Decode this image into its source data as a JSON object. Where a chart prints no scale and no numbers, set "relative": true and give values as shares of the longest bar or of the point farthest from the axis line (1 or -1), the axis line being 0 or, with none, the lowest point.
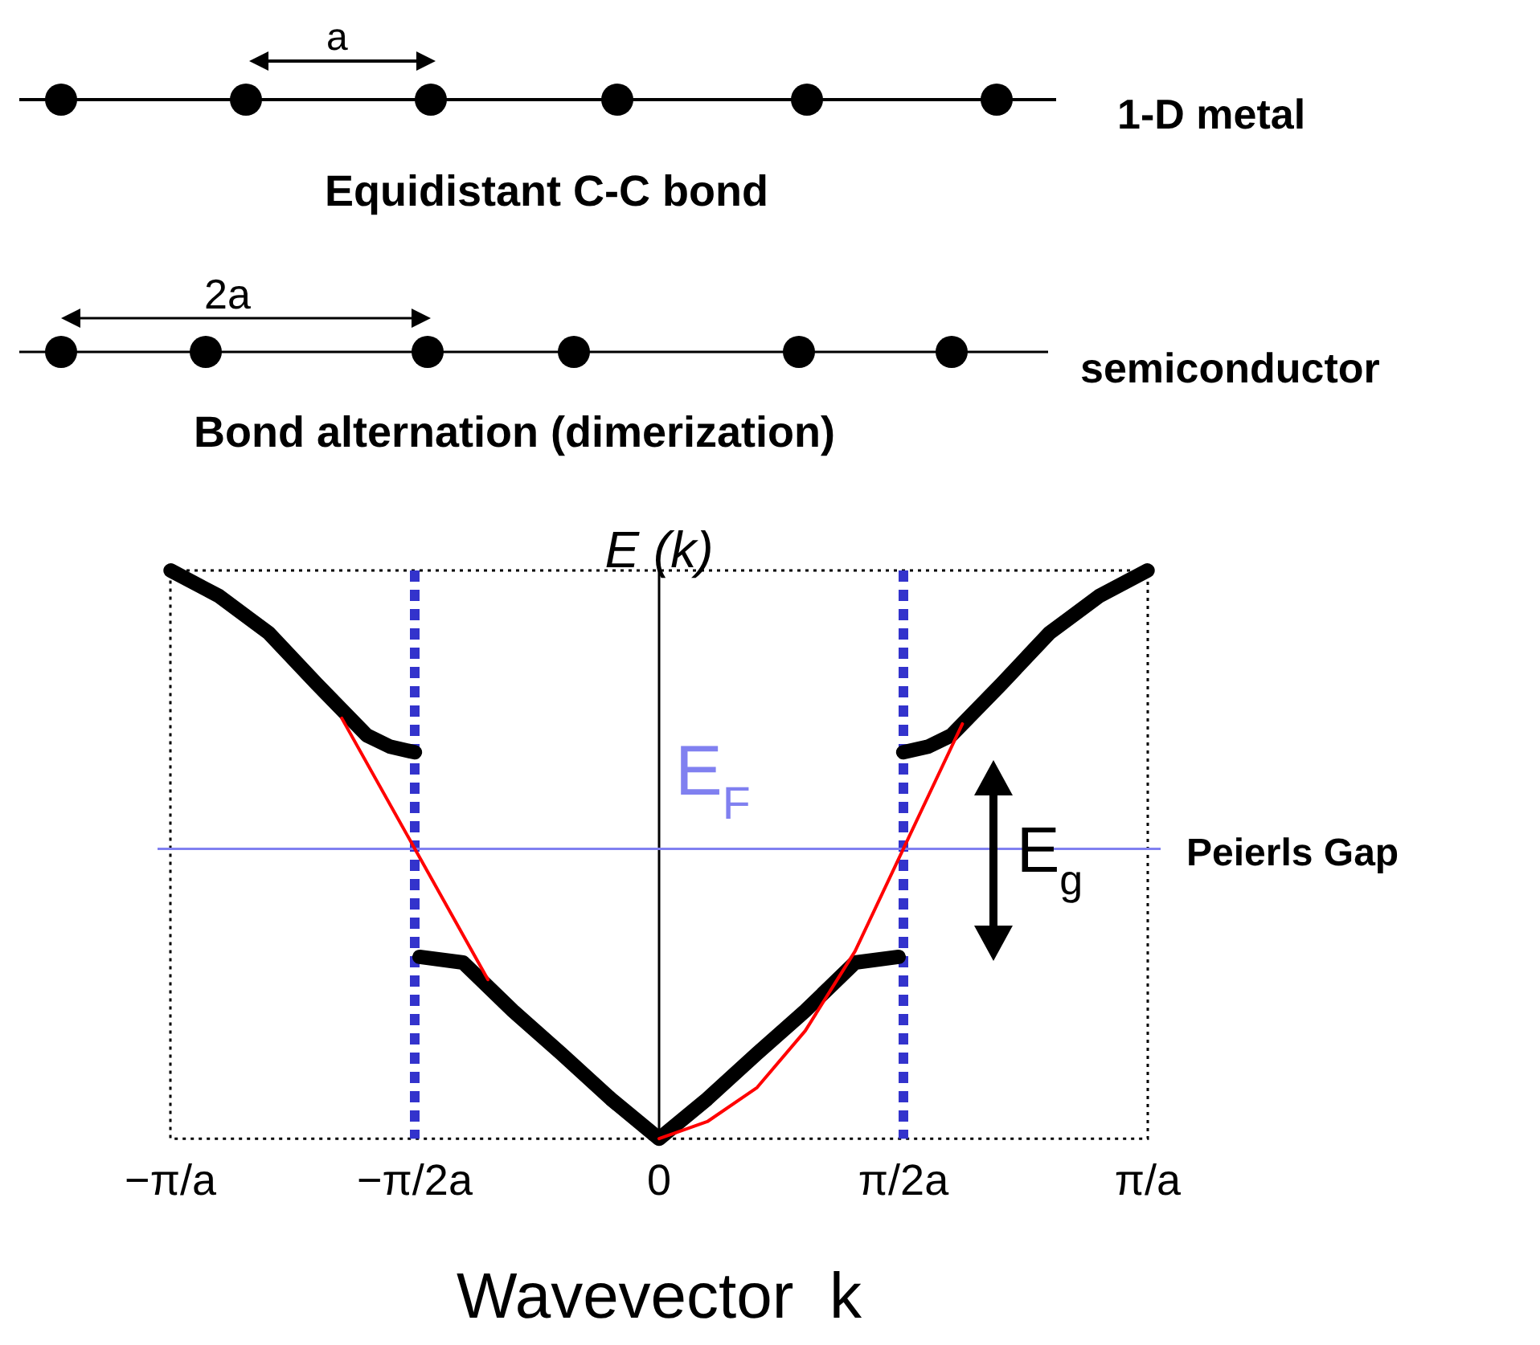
{
  "chart_data": {
    "type": "line",
    "relative": true,
    "ylabel": "E (k)",
    "xlabel": "Wavevector  k",
    "xlim": [
      -3.1416,
      3.1416
    ],
    "xticks": [
      {
        "value": -3.1416,
        "label": "−π/a"
      },
      {
        "value": -1.5708,
        "label": "−π/2a"
      },
      0,
      {
        "value": 1.5708,
        "label": "π/2a"
      },
      {
        "value": 3.1416,
        "label": "π/a"
      }
    ],
    "tick_labels": "x",
    "grid": false,
    "legend": false,
    "marker": "none",
    "series": [
      {
        "color": "#ff0000",
        "x": [
          -2.04,
          -1.57,
          -1.1,
          -0.63,
          0,
          0.31,
          0.63,
          0.94,
          1.26,
          1.57,
          1.95
        ],
        "values": [
          0.74,
          0.51,
          0.28,
          null,
          0,
          0.03,
          0.09,
          0.19,
          0.33,
          0.51,
          0.73
        ]
      },
      {
        "color": "#000000",
        "x": [
          -3.14,
          -2.83,
          -2.51,
          -2.2,
          -1.88,
          -1.73,
          -1.57,
          -1.555,
          -1.54,
          -1.26,
          -0.94,
          -0.63,
          -0.31,
          0,
          0.31,
          0.63,
          0.94,
          1.26,
          1.54,
          1.555,
          1.57,
          1.73,
          1.88,
          2.2,
          2.51,
          2.83,
          3.14
        ],
        "values": [
          1,
          0.955,
          0.89,
          0.8,
          0.71,
          0.69,
          0.68,
          null,
          0.32,
          0.31,
          0.225,
          0.15,
          0.07,
          0,
          0.07,
          0.15,
          0.225,
          0.31,
          0.32,
          null,
          0.68,
          0.69,
          0.71,
          0.8,
          0.89,
          0.955,
          1
        ]
      }
    ],
    "ref_lines": [
      {
        "axis": "x",
        "value": -1.5708,
        "color": "#3333cc",
        "line_style": "dashed"
      },
      {
        "axis": "x",
        "value": 1.5708,
        "color": "#3333cc",
        "line_style": "dashed"
      },
      {
        "axis": "x",
        "value": 0,
        "color": "#000000"
      },
      {
        "axis": "y",
        "value": 0.51,
        "label": "E$_{F}$",
        "color": "#8080f0"
      }
    ],
    "annotations": [
      "a",
      "1-D metal",
      "Equidistant C-C bond",
      "2a",
      "semiconductor",
      "Bond alternation (dimerization)",
      {
        "text": "E$_{g}$",
        "x": 2.32,
        "y": 0.51
      },
      "Peierls Gap"
    ]
  }
}
